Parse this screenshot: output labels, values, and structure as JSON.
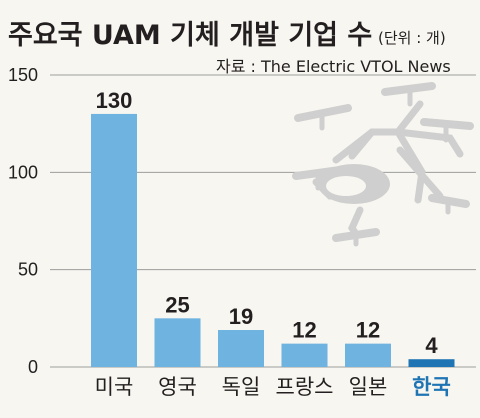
{
  "header": {
    "title": "주요국 UAM 기체 개발 기업 수",
    "unit": "(단위 : 개)",
    "source": "자료 : The Electric VTOL News"
  },
  "colors": {
    "background": "#f7f6f0",
    "bar": "#6fb3e0",
    "bar_highlight": "#1f74b4",
    "grid": "#9d9d9d",
    "text": "#231f20",
    "drone": "#cfcfcf"
  },
  "illustration": {
    "icon": "evtol-drone-icon"
  },
  "chart_data": {
    "type": "bar",
    "title": "주요국 UAM 기체 개발 기업 수",
    "xlabel": "",
    "ylabel": "",
    "categories": [
      "미국",
      "영국",
      "독일",
      "프랑스",
      "일본",
      "한국"
    ],
    "values": [
      130,
      25,
      19,
      12,
      12,
      4
    ],
    "value_labels": [
      "130",
      "25",
      "19",
      "12",
      "12",
      "4"
    ],
    "highlight": "한국",
    "ylim": [
      0,
      150
    ],
    "yticks": [
      0,
      50,
      100,
      150
    ],
    "ytick_labels": [
      "0",
      "50",
      "100",
      "150"
    ],
    "grid": true,
    "legend": "none"
  }
}
